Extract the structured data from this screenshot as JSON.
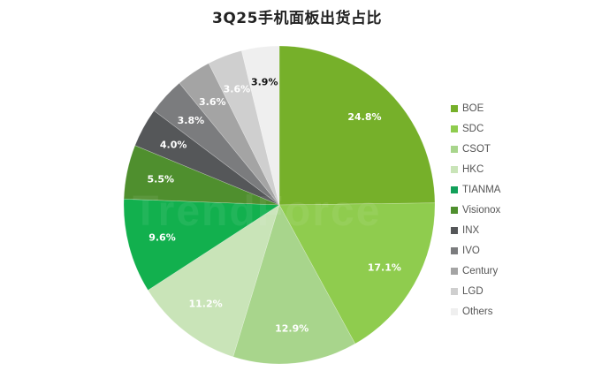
{
  "chart_data": {
    "type": "pie",
    "title": "3Q25手机面板出货占比",
    "categories": [
      "BOE",
      "SDC",
      "CSOT",
      "HKC",
      "TIANMA",
      "Visionox",
      "INX",
      "IVO",
      "Century",
      "LGD",
      "Others"
    ],
    "values": [
      24.8,
      17.1,
      12.9,
      11.2,
      9.6,
      5.5,
      4.0,
      3.8,
      3.6,
      3.6,
      3.9
    ],
    "labels": [
      "24.8%",
      "17.1%",
      "12.9%",
      "11.2%",
      "9.6%",
      "5.5%",
      "4.0%",
      "3.8%",
      "3.6%",
      "3.6%",
      "3.9%"
    ],
    "colors": [
      "#76b02a",
      "#8fcc4e",
      "#a8d58c",
      "#c9e4b8",
      "#12b04e",
      "#4f8f2e",
      "#555759",
      "#7b7c7e",
      "#a4a4a4",
      "#cfcfcf",
      "#efefef"
    ],
    "label_colors": [
      "#ffffff",
      "#ffffff",
      "#ffffff",
      "#ffffff",
      "#ffffff",
      "#ffffff",
      "#ffffff",
      "#ffffff",
      "#ffffff",
      "#ffffff",
      "#111111"
    ],
    "start_angle_deg": 0,
    "direction": "clockwise",
    "legend_position": "right",
    "xlabel": "",
    "ylabel": ""
  },
  "title": "3Q25手机面板出货占比",
  "legend": {
    "items": [
      {
        "label": "BOE",
        "color": "#76b02a"
      },
      {
        "label": "SDC",
        "color": "#8fcc4e"
      },
      {
        "label": "CSOT",
        "color": "#a8d58c"
      },
      {
        "label": "HKC",
        "color": "#c9e4b8"
      },
      {
        "label": "TIANMA",
        "color": "#12a05a"
      },
      {
        "label": "Visionox",
        "color": "#4f8f2e"
      },
      {
        "label": "INX",
        "color": "#555759"
      },
      {
        "label": "IVO",
        "color": "#7b7c7e"
      },
      {
        "label": "Century",
        "color": "#a4a4a4"
      },
      {
        "label": "LGD",
        "color": "#cfcfcf"
      },
      {
        "label": "Others",
        "color": "#efefef"
      }
    ]
  },
  "watermark": "TrendForce"
}
